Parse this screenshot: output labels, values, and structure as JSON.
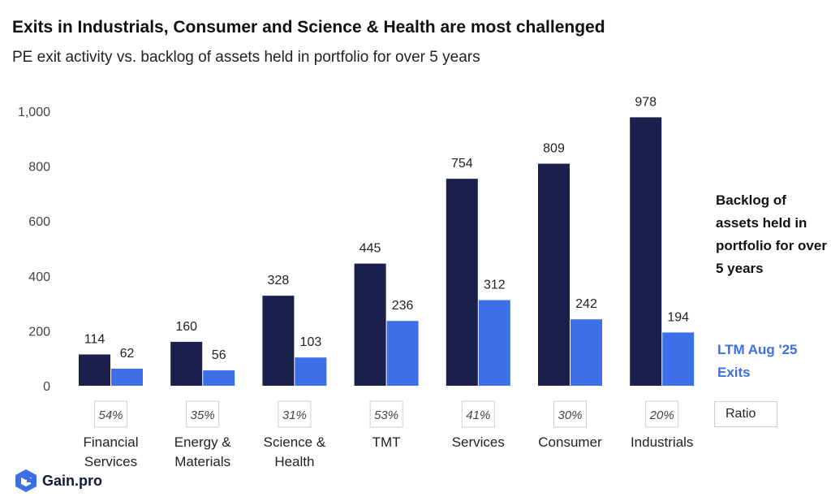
{
  "title": "Exits in Industrials, Consumer and Science & Health are most challenged",
  "subtitle": "PE exit activity vs. backlog of assets held in portfolio for over 5 years",
  "colors": {
    "backlog": "#1b1f4b",
    "exits": "#3d6fe8"
  },
  "legend": {
    "backlog": "Backlog of assets held in portfolio for over 5 years",
    "exits": "LTM Aug '25 Exits",
    "ratio": "Ratio"
  },
  "brand": {
    "name": "Gain.pro",
    "icon": "gain-pro-logo-icon"
  },
  "chart_data": {
    "type": "bar",
    "categories": [
      [
        "Financial",
        "Services"
      ],
      [
        "Energy &",
        "Materials"
      ],
      [
        "Science &",
        "Health"
      ],
      [
        "TMT"
      ],
      [
        "Services"
      ],
      [
        "Consumer"
      ],
      [
        "Industrials"
      ]
    ],
    "series": [
      {
        "name": "Backlog of assets held in portfolio for over 5 years",
        "values": [
          114,
          160,
          328,
          445,
          754,
          809,
          978
        ]
      },
      {
        "name": "LTM Aug '25 Exits",
        "values": [
          62,
          56,
          103,
          236,
          312,
          242,
          194
        ]
      }
    ],
    "ratios": [
      "54%",
      "35%",
      "31%",
      "53%",
      "41%",
      "30%",
      "20%"
    ],
    "y_ticks": [
      "0",
      "200",
      "400",
      "600",
      "800",
      "1,000"
    ],
    "ylim": [
      0,
      1000
    ],
    "grid": false,
    "legend_position": "right"
  }
}
